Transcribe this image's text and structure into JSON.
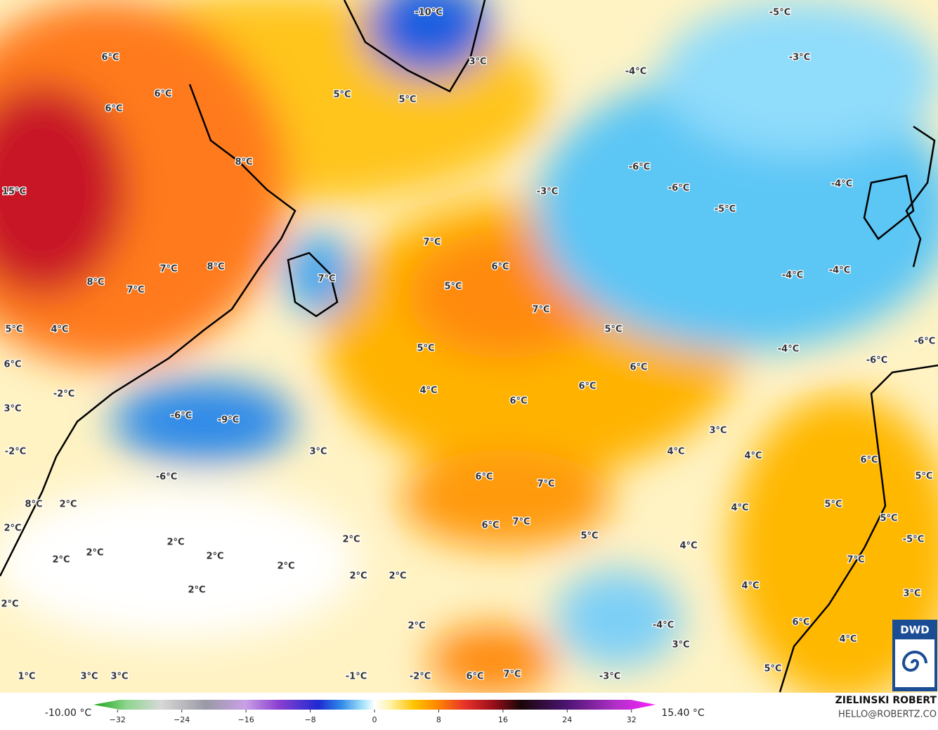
{
  "map": {
    "labels": [
      "-10°C",
      "-5°C",
      "-3°C",
      "-4°C",
      "3°C",
      "5°C",
      "5°C",
      "6°C",
      "6°C",
      "6°C",
      "8°C",
      "15°C",
      "-6°C",
      "-6°C",
      "-4°C",
      "-3°C",
      "-5°C",
      "7°C",
      "6°C",
      "7°C",
      "8°C",
      "8°C",
      "7°C",
      "7°C",
      "5°C",
      "-4°C",
      "-4°C",
      "7°C",
      "5°C",
      "4°C",
      "5°C",
      "-4°C",
      "-6°C",
      "5°C",
      "6°C",
      "6°C",
      "-6°C",
      "6°C",
      "4°C",
      "-2°C",
      "6°C",
      "3°C",
      "-6°C",
      "-9°C",
      "3°C",
      "-2°C",
      "3°C",
      "4°C",
      "4°C",
      "6°C",
      "-6°C",
      "6°C",
      "7°C",
      "5°C",
      "8°C",
      "2°C",
      "4°C",
      "5°C",
      "6°C",
      "7°C",
      "2°C",
      "5°C",
      "2°C",
      "2°C",
      "5°C",
      "-5°C",
      "4°C",
      "2°C",
      "2°C",
      "2°C",
      "2°C",
      "7°C",
      "2°C",
      "2°C",
      "2°C",
      "4°C",
      "3°C",
      "2°C",
      "2°C",
      "-4°C",
      "6°C",
      "3°C",
      "4°C",
      "5°C",
      "-1°C",
      "-2°C",
      "6°C",
      "7°C",
      "-3°C",
      "3°C",
      "3°C",
      "1°C"
    ]
  },
  "colorbar": {
    "min_label": "-10.00 °C",
    "max_label": "15.40 °C",
    "lim": [
      -35,
      35
    ],
    "ticks": [
      {
        "value": -32,
        "label": "−32"
      },
      {
        "value": -24,
        "label": "−24"
      },
      {
        "value": -16,
        "label": "−16"
      },
      {
        "value": -8,
        "label": "−8"
      },
      0,
      8,
      16,
      24,
      32
    ]
  },
  "credit": {
    "name": "ZIELINSKI ROBERT",
    "contact": "HELLO@ROBERTZ.CO",
    "logo": "DWD"
  }
}
